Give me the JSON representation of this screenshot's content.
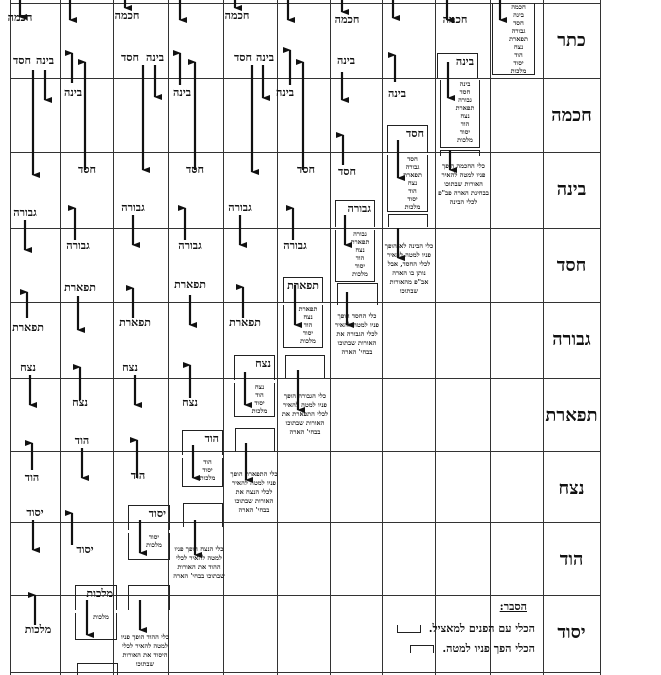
{
  "sefirot": {
    "keter": "כתר",
    "chochma": "חכמה",
    "bina": "בינה",
    "chesed": "חסד",
    "gevura": "גבורה",
    "tiferet": "תפארת",
    "netzach": "נצח",
    "hod": "הוד",
    "yesod": "יסוד",
    "malchut": "מלכות"
  },
  "row_headers": [
    "כתר",
    "חכמה",
    "בינה",
    "חסד",
    "גבורה",
    "תפארת",
    "נצח",
    "הוד",
    "יסוד"
  ],
  "vessel_lists": [
    [
      "חכמה",
      "בינה",
      "חסד",
      "גבורה",
      "תפארת",
      "נצח",
      "הוד",
      "יסוד",
      "מלכות"
    ],
    [
      "בינה",
      "חסד",
      "גבורה",
      "תפארת",
      "נצח",
      "הוד",
      "יסוד",
      "מלכות"
    ],
    [
      "חסד",
      "גבורה",
      "תפארת",
      "נצח",
      "הוד",
      "יסוד",
      "מלכות"
    ],
    [
      "גבורה",
      "תפארת",
      "נצח",
      "הוד",
      "יסוד",
      "מלכות"
    ],
    [
      "תפארת",
      "נצח",
      "הוד",
      "יסוד",
      "מלכות"
    ],
    [
      "נצח",
      "הוד",
      "יסוד",
      "מלכות"
    ],
    [
      "הוד",
      "יסוד",
      "מלכות"
    ],
    [
      "יסוד",
      "מלכות"
    ],
    [
      "מלכות"
    ]
  ],
  "explanations": [
    "כלי החכמה הופך פניו למטה להאיר האורות שבתוכו בבחינת הארה פב\"פ לכלי הבינה",
    "כלי הבינה לא הופך פניו למטה להאיר לכלי החסד, אבל נותן בו הארה אב\"פ מהאורות שבתוכו",
    "כלי החסד הופך פניו למטה להאיר לכלי הגבורה את האורות שבתוכו בבחי' הארה",
    "כלי הגבורה הופך פניו למטה להאיר לכלי התפארת את האורות שבתוכו בבחי' הארה",
    "כלי התפארת הופך פניו למטה להאיר לכלי הנצח את האורות שבתוכו בבחי' הארה",
    "כלי הנצח הופך פניו למטה להאיר לכלי ההוד את האורות שבתוכו בבחי' הארה",
    "כלי ההוד הופך פניו למטה להאיר לכלי היסוד את האורות שבתוכו"
  ],
  "legend": {
    "title": "הסבר:",
    "face_up": "הכלי עם הפנים למאציל.",
    "face_down": "הכלי הפך פניו למטה."
  }
}
